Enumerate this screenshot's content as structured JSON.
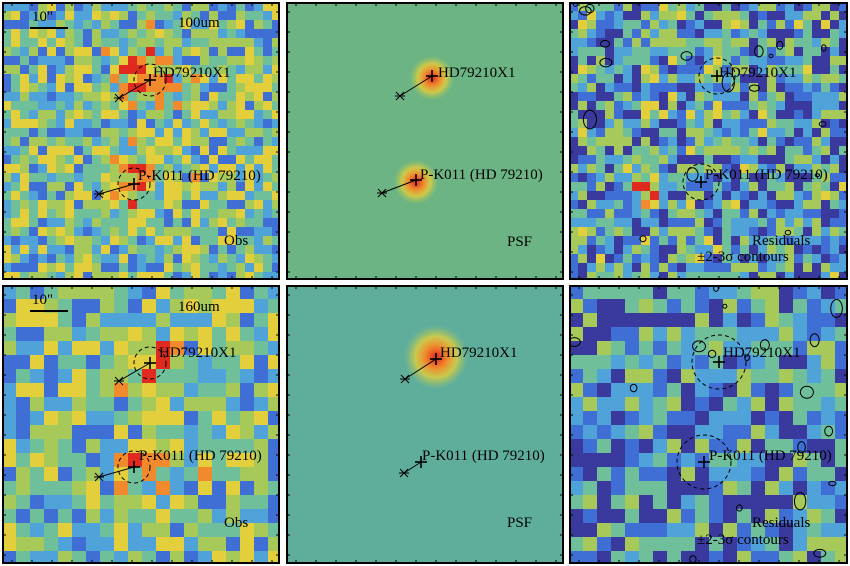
{
  "colors": {
    "background": "#ffffff",
    "frame": "#000000",
    "colormap": [
      "#3a3a9e",
      "#3f6fd4",
      "#4fa3d8",
      "#6fbf9a",
      "#a7c95a",
      "#e3cf3c",
      "#f08a2c",
      "#e12a1f"
    ]
  },
  "rows": [
    {
      "wavelength_label": "100um",
      "scale_label": "10\"",
      "panels": [
        {
          "kind": "obs",
          "label": "Obs",
          "sources": [
            "HD79210X1",
            "P-K011 (HD 79210)"
          ]
        },
        {
          "kind": "psf",
          "label": "PSF",
          "sources": [
            "HD79210X1",
            "P-K011 (HD 79210)"
          ]
        },
        {
          "kind": "residual",
          "label_line1": "Residuals",
          "label_line2": "±2-3σ contours",
          "sources": [
            "HD79210X1",
            "P-K011 (HD 79210)"
          ]
        }
      ]
    },
    {
      "wavelength_label": "160um",
      "scale_label": "10\"",
      "panels": [
        {
          "kind": "obs",
          "label": "Obs",
          "sources": [
            "HD79210X1",
            "P-K011 (HD 79210)"
          ]
        },
        {
          "kind": "psf",
          "label": "PSF",
          "sources": [
            "HD79210X1",
            "P-K011 (HD 79210)"
          ]
        },
        {
          "kind": "residual",
          "label_line1": "Residuals",
          "label_line2": "±2-3σ contours",
          "sources": [
            "HD79210X1",
            "P-K011 (HD 79210)"
          ]
        }
      ]
    }
  ]
}
